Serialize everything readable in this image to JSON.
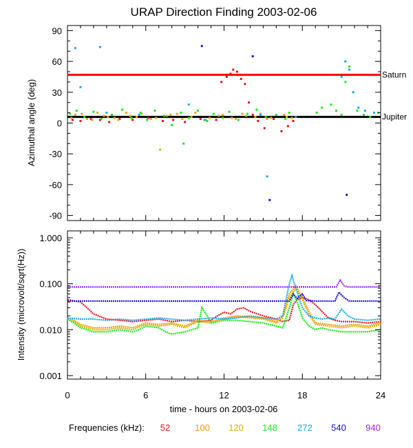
{
  "title": "URAP Direction Finding  2003-02-06",
  "x_axis": {
    "label": "time - hours on 2003-02-06",
    "ticks": [
      "0",
      "6",
      "12",
      "18",
      "24"
    ]
  },
  "frequencies": {
    "label": "Frequencies (kHz):",
    "items": [
      {
        "value": "52",
        "color": "#e8101c"
      },
      {
        "value": "100",
        "color": "#f59a00"
      },
      {
        "value": "120",
        "color": "#d7b000"
      },
      {
        "value": "148",
        "color": "#16ea16"
      },
      {
        "value": "272",
        "color": "#16aaec"
      },
      {
        "value": "540",
        "color": "#1010d8"
      },
      {
        "value": "940",
        "color": "#a020f0"
      }
    ]
  },
  "chart_data": [
    {
      "type": "scatter",
      "title": "URAP Direction Finding  2003-02-06",
      "xlabel": "time - hours on 2003-02-06",
      "ylabel": "Azimuthal angle (deg)",
      "xlim": [
        0,
        24
      ],
      "ylim": [
        -95,
        95
      ],
      "y_ticks": [
        "90",
        "60",
        "30",
        "0",
        "-30",
        "-60",
        "-90"
      ],
      "reference_lines": [
        {
          "name": "Saturn",
          "y": 47,
          "color": "#ff0000"
        },
        {
          "name": "Jupiter",
          "y": 6,
          "color": "#000000"
        }
      ],
      "series": [
        {
          "name": "52",
          "color": "#e8101c",
          "points": [
            [
              0.4,
              3
            ],
            [
              1.0,
              2
            ],
            [
              1.8,
              4
            ],
            [
              2.5,
              3
            ],
            [
              3.2,
              1
            ],
            [
              4.0,
              4
            ],
            [
              5.0,
              3
            ],
            [
              6.2,
              5
            ],
            [
              7.3,
              2
            ],
            [
              8.1,
              3
            ],
            [
              9.0,
              1
            ],
            [
              10.2,
              4
            ],
            [
              11.4,
              3
            ],
            [
              11.8,
              40
            ],
            [
              12.2,
              45
            ],
            [
              12.5,
              48
            ],
            [
              12.7,
              52
            ],
            [
              13.0,
              50
            ],
            [
              13.3,
              43
            ],
            [
              13.6,
              38
            ],
            [
              13.9,
              20
            ],
            [
              14.2,
              8
            ],
            [
              14.6,
              2
            ],
            [
              15.1,
              -5
            ],
            [
              15.8,
              4
            ],
            [
              16.4,
              -8
            ],
            [
              16.9,
              -3
            ],
            [
              17.3,
              2
            ]
          ]
        },
        {
          "name": "100",
          "color": "#f59a00",
          "points": [
            [
              0.3,
              5
            ],
            [
              1.1,
              9
            ],
            [
              1.9,
              3
            ],
            [
              2.8,
              7
            ],
            [
              3.6,
              5
            ],
            [
              4.5,
              10
            ],
            [
              5.3,
              6
            ],
            [
              6.4,
              4
            ],
            [
              7.6,
              7
            ],
            [
              8.4,
              9
            ],
            [
              9.5,
              6
            ],
            [
              10.6,
              3
            ],
            [
              11.6,
              7
            ],
            [
              12.6,
              5
            ],
            [
              13.4,
              9
            ],
            [
              14.4,
              6
            ],
            [
              15.3,
              4
            ],
            [
              16.6,
              8
            ],
            [
              17.2,
              5
            ]
          ]
        },
        {
          "name": "120",
          "color": "#d7b000",
          "points": [
            [
              0.6,
              8
            ],
            [
              1.5,
              4
            ],
            [
              2.3,
              10
            ],
            [
              3.1,
              6
            ],
            [
              3.9,
              3
            ],
            [
              4.8,
              7
            ],
            [
              5.7,
              9
            ],
            [
              6.8,
              5
            ],
            [
              7.1,
              -26
            ],
            [
              7.9,
              8
            ],
            [
              8.8,
              4
            ],
            [
              9.8,
              10
            ],
            [
              10.9,
              5
            ],
            [
              11.9,
              8
            ],
            [
              12.9,
              4
            ],
            [
              13.7,
              7
            ],
            [
              14.8,
              9
            ],
            [
              15.6,
              5
            ],
            [
              16.8,
              6
            ]
          ]
        },
        {
          "name": "148",
          "color": "#16ea16",
          "points": [
            [
              0.2,
              9
            ],
            [
              0.7,
              12
            ],
            [
              1.3,
              6
            ],
            [
              2.0,
              11
            ],
            [
              2.6,
              4
            ],
            [
              3.4,
              8
            ],
            [
              4.2,
              13
            ],
            [
              4.9,
              5
            ],
            [
              5.6,
              10
            ],
            [
              6.1,
              3
            ],
            [
              6.7,
              12
            ],
            [
              7.4,
              7
            ],
            [
              8.0,
              -2
            ],
            [
              8.7,
              10
            ],
            [
              9.3,
              5
            ],
            [
              10.0,
              12
            ],
            [
              10.7,
              2
            ],
            [
              11.2,
              9
            ],
            [
              11.9,
              5
            ],
            [
              12.4,
              11
            ],
            [
              13.1,
              3
            ],
            [
              13.8,
              9
            ],
            [
              14.5,
              13
            ],
            [
              15.2,
              6
            ],
            [
              16.0,
              8
            ],
            [
              16.7,
              4
            ],
            [
              17.0,
              10
            ],
            [
              19.1,
              10
            ],
            [
              19.5,
              15
            ],
            [
              20.2,
              18
            ],
            [
              20.6,
              12
            ],
            [
              21.0,
              8
            ],
            [
              21.3,
              40
            ],
            [
              21.6,
              55
            ],
            [
              21.9,
              30
            ],
            [
              22.2,
              12
            ],
            [
              22.7,
              8
            ],
            [
              23.2,
              6
            ],
            [
              23.8,
              10
            ],
            [
              8.9,
              -20
            ]
          ]
        },
        {
          "name": "272",
          "color": "#16aaec",
          "points": [
            [
              0.6,
              73
            ],
            [
              1.0,
              35
            ],
            [
              2.5,
              74
            ],
            [
              3.0,
              10
            ],
            [
              5.5,
              8
            ],
            [
              9.3,
              18
            ],
            [
              10.5,
              3
            ],
            [
              14.8,
              8
            ],
            [
              15.3,
              -52
            ],
            [
              17.5,
              6
            ],
            [
              21.0,
              45
            ],
            [
              21.3,
              60
            ],
            [
              21.6,
              52
            ],
            [
              21.9,
              30
            ],
            [
              22.3,
              15
            ],
            [
              22.8,
              12
            ],
            [
              23.5,
              10
            ]
          ]
        },
        {
          "name": "540",
          "color": "#1010d8",
          "points": [
            [
              10.3,
              75
            ],
            [
              14.2,
              65
            ],
            [
              15.5,
              -75
            ],
            [
              21.4,
              -70
            ]
          ]
        },
        {
          "name": "940",
          "color": "#a020f0",
          "points": []
        }
      ]
    },
    {
      "type": "line",
      "ylabel": "Intensity (microvolt/sqrt(Hz))",
      "xlabel": "time - hours on 2003-02-06",
      "y_scale": "log",
      "xlim": [
        0,
        24
      ],
      "ylim": [
        0.001,
        1.0
      ],
      "y_ticks": [
        "1.000",
        "0.100",
        "0.010",
        "0.001"
      ],
      "series": [
        {
          "name": "52",
          "color": "#e8101c",
          "x": [
            0,
            1,
            1.5,
            2,
            3,
            4,
            5,
            6,
            7,
            8,
            9,
            10,
            11,
            11.5,
            12,
            12.5,
            13,
            13.5,
            14,
            15,
            16,
            16.5,
            17,
            17.3,
            17.6,
            18,
            18.5,
            19,
            19.5,
            20,
            20.5,
            21,
            22,
            23,
            24
          ],
          "y": [
            0.045,
            0.04,
            0.03,
            0.022,
            0.017,
            0.016,
            0.015,
            0.016,
            0.017,
            0.015,
            0.016,
            0.015,
            0.016,
            0.02,
            0.024,
            0.022,
            0.028,
            0.03,
            0.025,
            0.02,
            0.017,
            0.015,
            0.016,
            0.035,
            0.045,
            0.05,
            0.045,
            0.035,
            0.025,
            0.018,
            0.016,
            0.015,
            0.015,
            0.014,
            0.015
          ]
        },
        {
          "name": "100",
          "color": "#f59a00",
          "x": [
            0,
            0.5,
            1,
            2,
            3,
            4,
            5,
            6,
            7,
            8,
            9,
            10,
            11,
            12,
            13,
            14,
            15,
            16,
            16.5,
            17,
            17.5,
            18,
            18.5,
            19,
            20,
            21,
            22,
            23,
            24
          ],
          "y": [
            0.018,
            0.016,
            0.013,
            0.011,
            0.011,
            0.012,
            0.011,
            0.014,
            0.013,
            0.014,
            0.012,
            0.016,
            0.015,
            0.018,
            0.02,
            0.019,
            0.018,
            0.015,
            0.02,
            0.06,
            0.09,
            0.05,
            0.025,
            0.014,
            0.013,
            0.012,
            0.013,
            0.012,
            0.014
          ]
        },
        {
          "name": "120",
          "color": "#d7b000",
          "x": [
            0,
            0.5,
            1,
            2,
            3,
            4,
            5,
            6,
            7,
            8,
            9,
            10,
            11,
            12,
            13,
            14,
            15,
            16,
            16.5,
            17,
            17.5,
            18,
            18.5,
            19,
            20,
            21,
            22,
            23,
            24
          ],
          "y": [
            0.017,
            0.015,
            0.012,
            0.01,
            0.01,
            0.011,
            0.01,
            0.013,
            0.012,
            0.013,
            0.011,
            0.015,
            0.014,
            0.017,
            0.019,
            0.018,
            0.017,
            0.014,
            0.018,
            0.05,
            0.08,
            0.045,
            0.022,
            0.013,
            0.012,
            0.011,
            0.012,
            0.011,
            0.013
          ]
        },
        {
          "name": "148",
          "color": "#16ea16",
          "x": [
            0,
            0.5,
            1,
            1.5,
            2,
            3,
            4,
            5,
            5.5,
            6,
            7,
            7.5,
            8,
            9,
            10,
            10.3,
            10.8,
            11,
            12,
            13,
            14,
            15,
            16,
            16.5,
            17,
            17.3,
            17.6,
            18,
            18.5,
            19,
            19.5,
            20,
            21,
            22,
            23,
            24
          ],
          "y": [
            0.017,
            0.014,
            0.011,
            0.01,
            0.009,
            0.009,
            0.01,
            0.009,
            0.01,
            0.012,
            0.011,
            0.009,
            0.008,
            0.009,
            0.011,
            0.03,
            0.018,
            0.014,
            0.016,
            0.016,
            0.015,
            0.014,
            0.012,
            0.011,
            0.03,
            0.06,
            0.04,
            0.018,
            0.012,
            0.01,
            0.011,
            0.01,
            0.009,
            0.009,
            0.009,
            0.01
          ]
        },
        {
          "name": "272",
          "color": "#16aaec",
          "x": [
            0,
            1,
            2,
            3,
            4,
            5,
            6,
            7,
            8,
            9,
            10,
            11,
            12,
            13,
            14,
            15,
            16,
            16.5,
            17,
            17.2,
            17.5,
            18,
            18.5,
            19,
            19.5,
            20,
            20.5,
            21,
            21.5,
            22,
            23,
            24
          ],
          "y": [
            0.018,
            0.017,
            0.017,
            0.016,
            0.017,
            0.016,
            0.017,
            0.018,
            0.017,
            0.016,
            0.017,
            0.018,
            0.017,
            0.018,
            0.02,
            0.018,
            0.017,
            0.02,
            0.1,
            0.15,
            0.08,
            0.03,
            0.02,
            0.018,
            0.017,
            0.018,
            0.017,
            0.028,
            0.02,
            0.017,
            0.016,
            0.017
          ]
        },
        {
          "name": "540",
          "color": "#1010d8",
          "x": [
            0,
            17,
            17.3,
            17.6,
            18,
            18.3,
            19,
            20.5,
            20.8,
            21.2,
            21.6,
            22,
            24
          ],
          "y": [
            0.042,
            0.042,
            0.06,
            0.048,
            0.06,
            0.043,
            0.042,
            0.042,
            0.065,
            0.05,
            0.042,
            0.042,
            0.042
          ]
        },
        {
          "name": "940",
          "color": "#a020f0",
          "x": [
            0,
            20.6,
            20.9,
            21.2,
            21.5,
            22,
            24
          ],
          "y": [
            0.085,
            0.085,
            0.12,
            0.09,
            0.085,
            0.085,
            0.085
          ]
        }
      ]
    }
  ]
}
